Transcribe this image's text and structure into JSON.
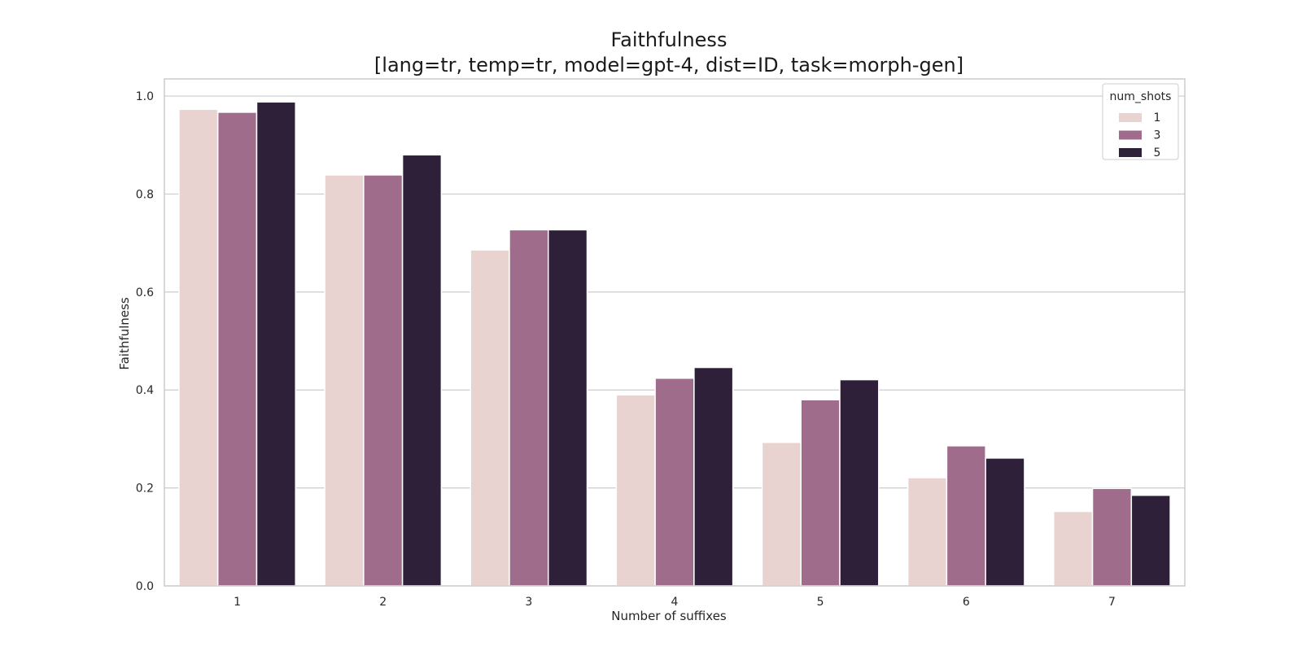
{
  "chart_data": {
    "type": "bar",
    "title": "Faithfulness",
    "subtitle": "[lang=tr, temp=tr, model=gpt-4, dist=ID, task=morph-gen]",
    "xlabel": "Number of suffixes",
    "ylabel": "Faithfulness",
    "categories": [
      "1",
      "2",
      "3",
      "4",
      "5",
      "6",
      "7"
    ],
    "ylim": [
      0,
      1.035
    ],
    "yticks": [
      "0.0",
      "0.2",
      "0.4",
      "0.6",
      "0.8",
      "1.0"
    ],
    "grid": true,
    "legend": {
      "title": "num_shots",
      "placement": "top-right"
    },
    "series": [
      {
        "name": "1",
        "color": "#e8d3d0",
        "values": [
          0.973,
          0.839,
          0.686,
          0.39,
          0.293,
          0.221,
          0.152
        ]
      },
      {
        "name": "3",
        "color": "#a06c8c",
        "values": [
          0.967,
          0.839,
          0.727,
          0.424,
          0.38,
          0.286,
          0.199
        ]
      },
      {
        "name": "5",
        "color": "#2e2039",
        "values": [
          0.988,
          0.88,
          0.727,
          0.446,
          0.421,
          0.261,
          0.185
        ]
      }
    ]
  }
}
